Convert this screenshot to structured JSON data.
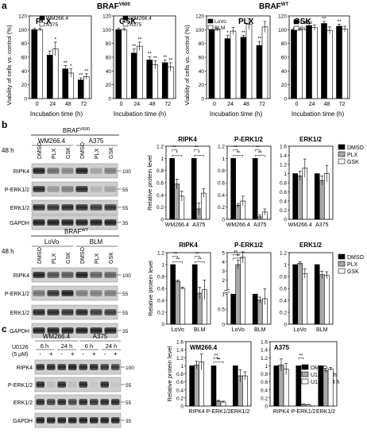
{
  "panel_labels": {
    "a": "a",
    "b": "b",
    "c": "c"
  },
  "braf_v600": {
    "prefix": "BRAF",
    "sup": "V600"
  },
  "braf_wt": {
    "prefix": "BRAF",
    "sup": "WT"
  },
  "a": {
    "ylabel": "Viability of cells vs. control (%)",
    "xlabel": "Incubation time (h)",
    "charts": [
      {
        "title": "PLX",
        "legend": [
          "WM266.4",
          "A375"
        ],
        "colors": [
          "#000000",
          "#ffffff"
        ]
      },
      {
        "title": "GSK",
        "legend": [
          "WM266.4",
          "A375"
        ],
        "colors": [
          "#000000",
          "#ffffff"
        ]
      },
      {
        "title": "PLX",
        "legend": [
          "LoVo",
          "BLM"
        ],
        "colors": [
          "#000000",
          "#ffffff"
        ]
      },
      {
        "title": "GSK",
        "legend": [
          "LoVo",
          "BLM"
        ],
        "colors": [
          "#000000",
          "#ffffff"
        ]
      }
    ]
  },
  "chart_data": [
    {
      "type": "bar",
      "title": "PLX",
      "categories": [
        "0",
        "24",
        "48",
        "72"
      ],
      "xlabel": "Incubation time (h)",
      "ylabel": "Viability of cells vs. control (%)",
      "ylim": [
        0,
        120
      ],
      "yticks": [
        0,
        20,
        40,
        60,
        80,
        100,
        120
      ],
      "series": [
        {
          "name": "WM266.4",
          "values": [
            100,
            63,
            43,
            27
          ],
          "errors": [
            2,
            6,
            5,
            3
          ]
        },
        {
          "name": "A375",
          "values": [
            100,
            72,
            37,
            32
          ],
          "errors": [
            2,
            10,
            6,
            4
          ]
        }
      ],
      "annotations": [
        [
          "",
          "*"
        ],
        [
          "**",
          "*"
        ],
        [
          "**",
          "**"
        ]
      ]
    },
    {
      "type": "bar",
      "title": "GSK",
      "categories": [
        "0",
        "24",
        "48",
        "72"
      ],
      "xlabel": "Incubation time (h)",
      "ylabel": "",
      "ylim": [
        0,
        120
      ],
      "yticks": [
        0,
        20,
        40,
        60,
        80,
        100,
        120
      ],
      "series": [
        {
          "name": "WM266.4",
          "values": [
            100,
            66,
            56,
            52
          ],
          "errors": [
            2,
            6,
            5,
            4
          ]
        },
        {
          "name": "A375",
          "values": [
            100,
            76,
            49,
            46
          ],
          "errors": [
            2,
            6,
            6,
            6
          ]
        }
      ],
      "annotations": [
        [
          "**",
          "**"
        ],
        [
          "**",
          "**"
        ],
        [
          "**",
          "**"
        ]
      ]
    },
    {
      "type": "bar",
      "title": "PLX",
      "categories": [
        "0",
        "24",
        "48",
        "72"
      ],
      "xlabel": "Incubation time (h)",
      "ylabel": "Viability of cells vs. control (%)",
      "ylim": [
        0,
        120
      ],
      "yticks": [
        0,
        20,
        40,
        60,
        80,
        100,
        120
      ],
      "series": [
        {
          "name": "LoVo",
          "values": [
            100,
            87,
            89,
            77
          ],
          "errors": [
            2,
            5,
            3,
            6
          ]
        },
        {
          "name": "BLM",
          "values": [
            100,
            98,
            108,
            104
          ],
          "errors": [
            2,
            5,
            8,
            8
          ]
        }
      ],
      "annotations": [
        [
          "*",
          ""
        ],
        [
          "**",
          ""
        ],
        [
          "**",
          ""
        ]
      ]
    },
    {
      "type": "bar",
      "title": "GSK",
      "categories": [
        "0",
        "24",
        "48",
        "72"
      ],
      "xlabel": "Incubation time (h)",
      "ylabel": "",
      "ylim": [
        0,
        120
      ],
      "yticks": [
        0,
        20,
        40,
        60,
        80,
        100,
        120
      ],
      "series": [
        {
          "name": "LoVo",
          "values": [
            100,
            106,
            109,
            105
          ],
          "errors": [
            2,
            3,
            3,
            3
          ]
        },
        {
          "name": "BLM",
          "values": [
            100,
            103,
            99,
            101
          ],
          "errors": [
            2,
            4,
            5,
            4
          ]
        }
      ],
      "annotations": [
        [
          "",
          ""
        ],
        [
          "**",
          ""
        ],
        [
          "**",
          ""
        ]
      ]
    },
    {
      "type": "bar",
      "title": "RIPK4",
      "categories": [
        "WM266.4",
        "A375"
      ],
      "ylabel": "Relative protein level",
      "ylim": [
        0,
        1.2
      ],
      "yticks": [
        0,
        0.2,
        0.4,
        0.6,
        0.8,
        1,
        1.2
      ],
      "series": [
        {
          "name": "DMSO",
          "values": [
            1,
            1
          ],
          "errors": [
            0,
            0
          ]
        },
        {
          "name": "PLX",
          "values": [
            0.58,
            0.17
          ],
          "errors": [
            0.08,
            0.1
          ]
        },
        {
          "name": "GSK",
          "values": [
            0.38,
            0.43
          ],
          "errors": [
            0.08,
            0.07
          ]
        }
      ]
    },
    {
      "type": "bar",
      "title": "P-ERK1/2",
      "categories": [
        "WM266.4",
        "A375"
      ],
      "ylabel": "",
      "ylim": [
        0,
        1.2
      ],
      "yticks": [
        0,
        0.2,
        0.4,
        0.6,
        0.8,
        1,
        1.2
      ],
      "series": [
        {
          "name": "DMSO",
          "values": [
            1,
            1
          ],
          "errors": [
            0,
            0
          ]
        },
        {
          "name": "PLX",
          "values": [
            0.23,
            0.04
          ],
          "errors": [
            0.03,
            0.03
          ]
        },
        {
          "name": "GSK",
          "values": [
            0.3,
            0.12
          ],
          "errors": [
            0.08,
            0.05
          ]
        }
      ]
    },
    {
      "type": "bar",
      "title": "ERK1/2",
      "categories": [
        "WM266.4",
        "A375"
      ],
      "ylabel": "",
      "ylim": [
        0,
        1.6
      ],
      "yticks": [
        0,
        0.2,
        0.4,
        0.6,
        0.8,
        1,
        1.2,
        1.4,
        1.6
      ],
      "series": [
        {
          "name": "DMSO",
          "values": [
            1,
            1
          ],
          "errors": [
            0,
            0
          ]
        },
        {
          "name": "PLX",
          "values": [
            0.95,
            0.85
          ],
          "errors": [
            0.1,
            0.1
          ]
        },
        {
          "name": "GSK",
          "values": [
            1.12,
            1.0
          ],
          "errors": [
            0.2,
            0.18
          ]
        }
      ]
    },
    {
      "type": "bar",
      "title": "RIPK4",
      "categories": [
        "LoVo",
        "BLM"
      ],
      "ylabel": "Relative protein level",
      "ylim": [
        0,
        1.2
      ],
      "yticks": [
        0,
        0.2,
        0.4,
        0.6,
        0.8,
        1,
        1.2
      ],
      "series": [
        {
          "name": "DMSO",
          "values": [
            1,
            1
          ],
          "errors": [
            0,
            0
          ]
        },
        {
          "name": "PLX",
          "values": [
            0.72,
            0.52
          ],
          "errors": [
            0.02,
            0.1
          ]
        },
        {
          "name": "GSK",
          "values": [
            0.6,
            0.58
          ],
          "errors": [
            0.02,
            0.16
          ]
        }
      ]
    },
    {
      "type": "bar",
      "title": "P-ERK1/2",
      "categories": [
        "LoVo",
        "BLM"
      ],
      "ylabel": "",
      "ylim": [
        0,
        5
      ],
      "yticks": [
        0,
        0.5,
        1,
        2,
        3,
        4,
        5
      ],
      "axis_break": true,
      "series": [
        {
          "name": "DMSO",
          "values": [
            1,
            1
          ],
          "errors": [
            0,
            0
          ]
        },
        {
          "name": "PLX",
          "values": [
            3.7,
            0.8
          ],
          "errors": [
            0.5,
            0.1
          ]
        },
        {
          "name": "GSK",
          "values": [
            4.5,
            0.85
          ],
          "errors": [
            0.6,
            0.2
          ]
        }
      ]
    },
    {
      "type": "bar",
      "title": "ERK1/2",
      "categories": [
        "LoVo",
        "BLM"
      ],
      "ylabel": "",
      "ylim": [
        0,
        1.2
      ],
      "yticks": [
        0,
        0.2,
        0.4,
        0.6,
        0.8,
        1,
        1.2
      ],
      "series": [
        {
          "name": "DMSO",
          "values": [
            1,
            1
          ],
          "errors": [
            0,
            0
          ]
        },
        {
          "name": "PLX",
          "values": [
            1.02,
            0.83
          ],
          "errors": [
            0.03,
            0.06
          ]
        },
        {
          "name": "GSK",
          "values": [
            0.85,
            0.82
          ],
          "errors": [
            0.08,
            0.06
          ]
        }
      ]
    },
    {
      "type": "bar",
      "title": "WM266.4",
      "categories": [
        "RIPK4",
        "P-ERK1/2",
        "ERK1/2"
      ],
      "ylabel": "Relative protein level",
      "ylim": [
        0,
        1.6
      ],
      "yticks": [
        0,
        0.2,
        0.4,
        0.6,
        0.8,
        1,
        1.2,
        1.4,
        1.6
      ],
      "series": [
        {
          "name": "DMSO",
          "values": [
            1,
            1,
            1
          ],
          "errors": [
            0,
            0,
            0
          ]
        },
        {
          "name": "U126 - 6 h",
          "values": [
            1.02,
            0.12,
            0.75
          ],
          "errors": [
            0.1,
            0.02,
            0.15
          ]
        },
        {
          "name": "U126 - 24 h",
          "values": [
            1.1,
            0.1,
            0.75
          ],
          "errors": [
            0.2,
            0.02,
            0.1
          ]
        }
      ]
    },
    {
      "type": "bar",
      "title": "A375",
      "categories": [
        "RIPK4",
        "P-ERK1/2",
        "ERK1/2"
      ],
      "ylabel": "",
      "ylim": [
        0,
        1.6
      ],
      "yticks": [
        0,
        0.2,
        0.4,
        0.6,
        0.8,
        1,
        1.2,
        1.4,
        1.6
      ],
      "series": [
        {
          "name": "DMSO",
          "values": [
            1,
            1,
            1
          ],
          "errors": [
            0,
            0,
            0
          ]
        },
        {
          "name": "U126 - 6 h",
          "values": [
            1.02,
            0.04,
            0.88
          ],
          "errors": [
            0.15,
            0.01,
            0.05
          ]
        },
        {
          "name": "U126 - 24 h",
          "values": [
            0.92,
            0.03,
            0.92
          ],
          "errors": [
            0.14,
            0.01,
            0.04
          ]
        }
      ]
    }
  ],
  "b": {
    "blot1": {
      "cell_lines": [
        "WM266.4",
        "A375"
      ],
      "time": "48 h",
      "lanes": [
        "DMSO",
        "PLX",
        "GSK",
        "DMSO",
        "PLX",
        "GSK"
      ],
      "proteins": [
        "RIPK4",
        "P-ERK1/2",
        "ERK1/2",
        "GAPDH"
      ],
      "markers": [
        "100",
        "55",
        "55",
        "35"
      ]
    },
    "blot2": {
      "cell_lines": [
        "LoVo",
        "BLM"
      ],
      "time": "48 h",
      "lanes": [
        "DMSO",
        "PLX",
        "GSK",
        "DMSO",
        "PLX",
        "GSK"
      ],
      "proteins": [
        "RIPK4",
        "P-ERK1/2",
        "ERK1/2",
        "GAPDH"
      ],
      "markers": [
        "100",
        "55",
        "55",
        "35"
      ]
    },
    "legend": [
      "DMSO",
      "PLX",
      "GSK"
    ]
  },
  "c": {
    "blot": {
      "cell_lines": [
        "WM266.4",
        "A375"
      ],
      "times": [
        "6 h",
        "24 h",
        "6 h",
        "24 h"
      ],
      "treatment": "U0126",
      "dose": "(5 μM)",
      "signs": [
        "-",
        "+",
        "-",
        "+",
        "-",
        "+",
        "-",
        "+"
      ],
      "proteins": [
        "RIPK4",
        "P-ERK1/2",
        "ERK1/2",
        "GAPDH"
      ],
      "markers": [
        "100",
        "55",
        "55",
        "35"
      ]
    },
    "legend": [
      "DMSO",
      "U126 - 6 h",
      "U126 - 24 h"
    ]
  }
}
